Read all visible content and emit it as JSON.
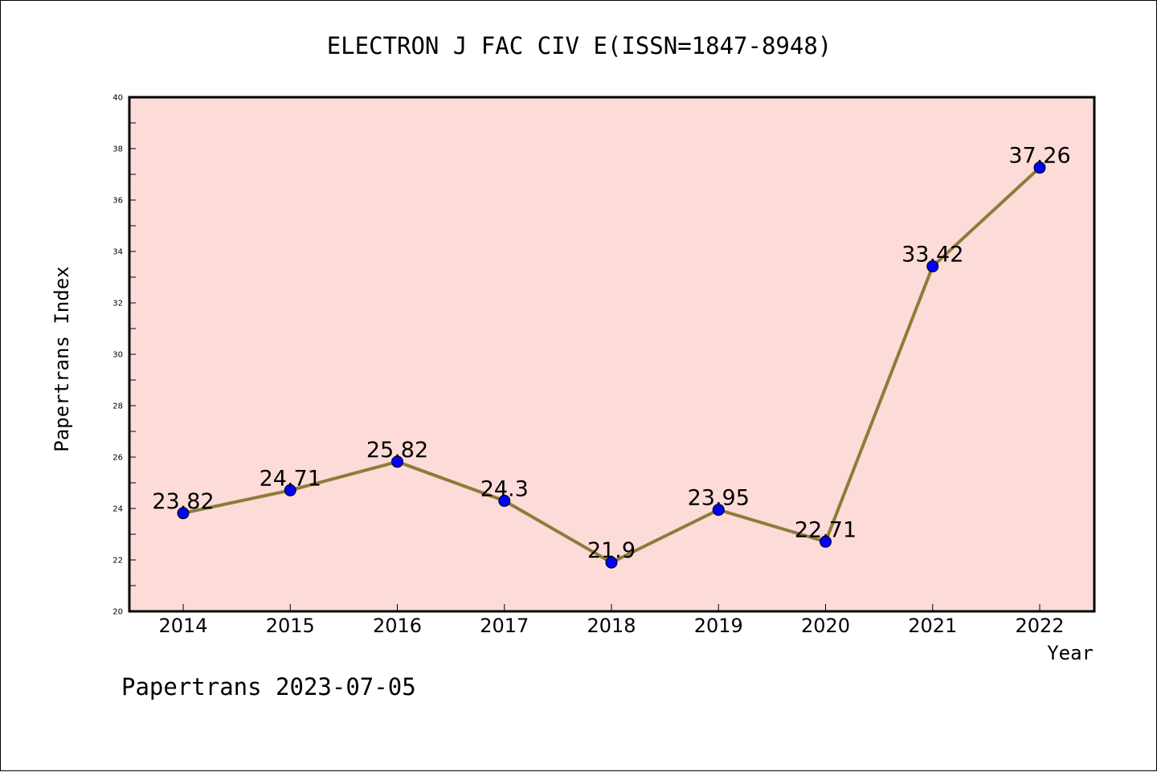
{
  "chart_data": {
    "type": "line",
    "title": "ELECTRON J FAC CIV E(ISSN=1847-8948)",
    "xlabel": "Year",
    "ylabel": "Papertrans Index",
    "categories": [
      "2014",
      "2015",
      "2016",
      "2017",
      "2018",
      "2019",
      "2020",
      "2021",
      "2022"
    ],
    "values": [
      23.82,
      24.71,
      25.82,
      24.3,
      21.9,
      23.95,
      22.71,
      33.42,
      37.26
    ],
    "data_labels": [
      "23.82",
      "24.71",
      "25.82",
      "24.3",
      "21.9",
      "23.95",
      "22.71",
      "33.42",
      "37.26"
    ],
    "ylim": [
      20,
      40
    ],
    "yticks": [
      20,
      22,
      24,
      26,
      28,
      30,
      32,
      34,
      36,
      38,
      40
    ],
    "grid": false,
    "colors": {
      "plot_background": "#fddbd8",
      "line": "#8b7d3a",
      "marker": "#0000ff",
      "axis": "#000000"
    }
  },
  "footer": "Papertrans 2023-07-05"
}
